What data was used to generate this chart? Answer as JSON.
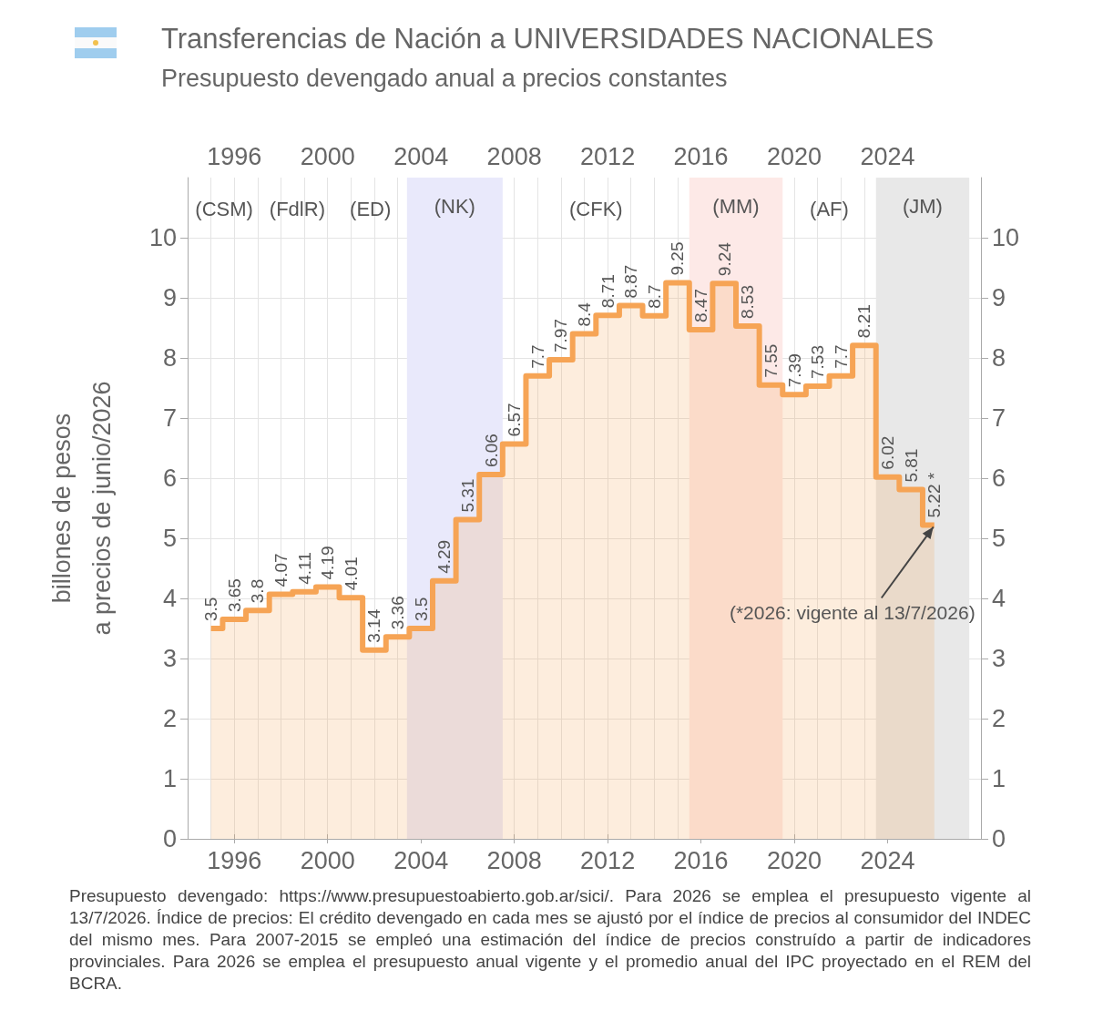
{
  "chart_data": {
    "type": "step",
    "title": "Transferencias de Nación a UNIVERSIDADES NACIONALES",
    "subtitle": "Presupuesto devengado anual a precios constantes",
    "ylabel": "billones de pesos\na precios de junio/2026",
    "x": [
      1995,
      1996,
      1997,
      1998,
      1999,
      2000,
      2001,
      2002,
      2003,
      2004,
      2005,
      2006,
      2007,
      2008,
      2009,
      2010,
      2011,
      2012,
      2013,
      2014,
      2015,
      2016,
      2017,
      2018,
      2019,
      2020,
      2021,
      2022,
      2023,
      2024,
      2025,
      2026
    ],
    "series": [
      {
        "type": "area",
        "color": "#f6a455",
        "values": [
          3.5,
          3.65,
          3.8,
          4.07,
          4.11,
          4.19,
          4.01,
          3.14,
          3.36,
          3.5,
          4.29,
          5.31,
          6.06,
          6.57,
          7.7,
          7.97,
          8.4,
          8.71,
          8.87,
          8.7,
          9.25,
          8.47,
          9.24,
          8.53,
          7.55,
          7.39,
          7.53,
          7.7,
          8.21,
          6.02,
          5.81,
          5.22
        ]
      },
      {
        "color": "#f6a455",
        "values": [
          3.5,
          3.65,
          3.8,
          4.07,
          4.11,
          4.19,
          4.01,
          3.14,
          3.36,
          3.5,
          4.29,
          5.31,
          6.06,
          6.57,
          7.7,
          7.97,
          8.4,
          8.71,
          8.87,
          8.7,
          9.25,
          8.47,
          9.24,
          8.53,
          7.55,
          7.39,
          7.53,
          7.7,
          8.21,
          6.02,
          5.81,
          5.22
        ],
        "value_labels": [
          "3.5",
          "3.65",
          "3.8",
          "4.07",
          "4.11",
          "4.19",
          "4.01",
          "3.14",
          "3.36",
          "3.5",
          "4.29",
          "5.31",
          "6.06",
          "6.57",
          "7.7",
          "7.97",
          "8.4",
          "8.71",
          "8.87",
          "8.7",
          "9.25",
          "8.47",
          "9.24",
          "8.53",
          "7.55",
          "7.39",
          "7.53",
          "7.7",
          "8.21",
          "6.02",
          "5.81",
          "5.22 *"
        ]
      }
    ],
    "xlim": [
      1994,
      2028
    ],
    "xticks": [
      1996,
      2000,
      2004,
      2008,
      2012,
      2016,
      2020,
      2024
    ],
    "x2lim": [
      1994,
      2028
    ],
    "x2ticks": [
      1996,
      2000,
      2004,
      2008,
      2012,
      2016,
      2020,
      2024
    ],
    "ylim": [
      0,
      11
    ],
    "yticks": [
      0,
      1,
      2,
      3,
      4,
      5,
      6,
      7,
      8,
      9,
      10
    ],
    "y2lim": [
      0,
      11
    ],
    "y2ticks": [
      0,
      1,
      2,
      3,
      4,
      5,
      6,
      7,
      8,
      9,
      10
    ],
    "grid": true,
    "bands": [
      {
        "axis": "x",
        "from": 2003.4,
        "to": 2007.5,
        "label": "(NK)",
        "color": "#e9e9fb"
      },
      {
        "axis": "x",
        "from": 2015.5,
        "to": 2019.5,
        "label": "(MM)",
        "color": "#fde9e7"
      },
      {
        "axis": "x",
        "from": 2023.5,
        "to": 2027.5,
        "label": "(JM)",
        "color": "#e8e8e8"
      }
    ],
    "annotations": [
      "(CSM)",
      "(FdlR)",
      "(ED)",
      "(CFK)",
      "(AF)",
      {
        "text": "(*2026: vigente al 13/7/2026)",
        "x": 2026,
        "y": 5.22
      },
      "Presupuesto devengado: https://www.presupuestoabierto.gob.ar/sici/. Para 2026 se emplea el presupuesto vigente al 13/7/2026. Índice de precios: El crédito devengado en cada mes se ajustó por el índice de precios al consumidor del INDEC del mismo mes. Para 2007-2015 se empleó una estimación del índice de precios construído a partir de indicadores provinciales. Para 2026 se emplea el presupuesto anual vigente y el promedio anual del IPC proyectado en el REM del BCRA."
    ]
  }
}
